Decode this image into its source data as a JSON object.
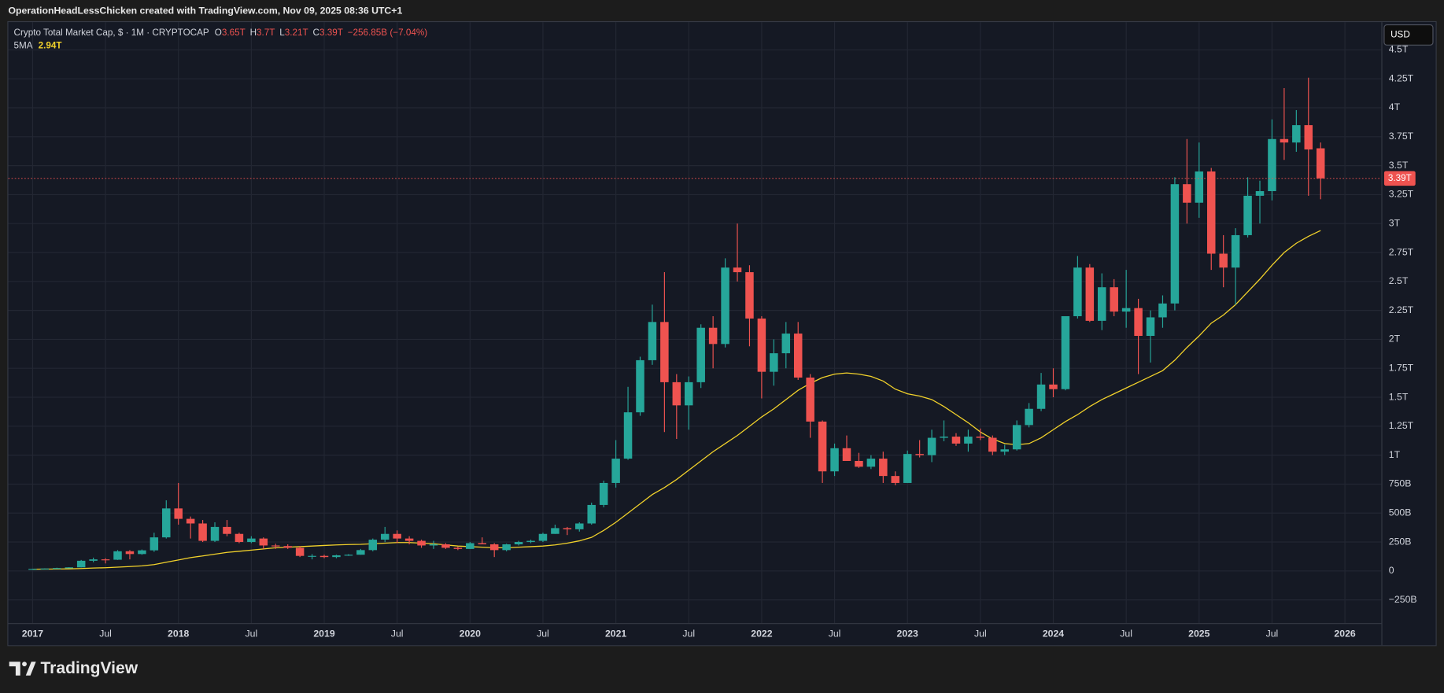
{
  "header": {
    "credit": "OperationHeadLessChicken created with TradingView.com, Nov 09, 2025 08:36 UTC+1"
  },
  "footer": {
    "brand": "TradingView"
  },
  "chart_data": {
    "type": "candlestick",
    "currency": "USD",
    "legend": {
      "symbol": "Crypto Total Market Cap, $ · 1M · CRYPTOCAP",
      "open_label": "O",
      "open": "3.65T",
      "high_label": "H",
      "high": "3.7T",
      "low_label": "L",
      "low": "3.21T",
      "close_label": "C",
      "close": "3.39T",
      "change": "−256.85B (−7.04%)"
    },
    "last_price_label": "3.39T",
    "up_color": "#26a69a",
    "down_color": "#ef5350",
    "x": [
      "2017-01",
      "2017-02",
      "2017-03",
      "2017-04",
      "2017-05",
      "2017-06",
      "2017-07",
      "2017-08",
      "2017-09",
      "2017-10",
      "2017-11",
      "2017-12",
      "2018-01",
      "2018-02",
      "2018-03",
      "2018-04",
      "2018-05",
      "2018-06",
      "2018-07",
      "2018-08",
      "2018-09",
      "2018-10",
      "2018-11",
      "2018-12",
      "2019-01",
      "2019-02",
      "2019-03",
      "2019-04",
      "2019-05",
      "2019-06",
      "2019-07",
      "2019-08",
      "2019-09",
      "2019-10",
      "2019-11",
      "2019-12",
      "2020-01",
      "2020-02",
      "2020-03",
      "2020-04",
      "2020-05",
      "2020-06",
      "2020-07",
      "2020-08",
      "2020-09",
      "2020-10",
      "2020-11",
      "2020-12",
      "2021-01",
      "2021-02",
      "2021-03",
      "2021-04",
      "2021-05",
      "2021-06",
      "2021-07",
      "2021-08",
      "2021-09",
      "2021-10",
      "2021-11",
      "2021-12",
      "2022-01",
      "2022-02",
      "2022-03",
      "2022-04",
      "2022-05",
      "2022-06",
      "2022-07",
      "2022-08",
      "2022-09",
      "2022-10",
      "2022-11",
      "2022-12",
      "2023-01",
      "2023-02",
      "2023-03",
      "2023-04",
      "2023-05",
      "2023-06",
      "2023-07",
      "2023-08",
      "2023-09",
      "2023-10",
      "2023-11",
      "2023-12",
      "2024-01",
      "2024-02",
      "2024-03",
      "2024-04",
      "2024-05",
      "2024-06",
      "2024-07",
      "2024-08",
      "2024-09",
      "2024-10",
      "2024-11",
      "2024-12",
      "2025-01",
      "2025-02",
      "2025-03",
      "2025-04",
      "2025-05",
      "2025-06",
      "2025-07",
      "2025-08",
      "2025-09",
      "2025-10",
      "2025-11"
    ],
    "open": [
      0.018,
      0.018,
      0.021,
      0.025,
      0.031,
      0.088,
      0.1,
      0.097,
      0.17,
      0.146,
      0.178,
      0.29,
      0.54,
      0.45,
      0.41,
      0.26,
      0.38,
      0.32,
      0.25,
      0.28,
      0.22,
      0.215,
      0.2,
      0.13,
      0.13,
      0.12,
      0.135,
      0.14,
      0.18,
      0.27,
      0.32,
      0.28,
      0.26,
      0.22,
      0.23,
      0.2,
      0.19,
      0.24,
      0.23,
      0.18,
      0.23,
      0.25,
      0.26,
      0.32,
      0.37,
      0.36,
      0.41,
      0.57,
      0.76,
      0.97,
      1.37,
      1.82,
      2.15,
      1.63,
      1.43,
      1.63,
      2.1,
      1.96,
      2.62,
      2.58,
      2.18,
      1.72,
      1.88,
      2.05,
      1.67,
      1.29,
      0.86,
      1.06,
      0.95,
      0.9,
      0.97,
      0.82,
      0.76,
      1.01,
      1.0,
      1.15,
      1.16,
      1.1,
      1.16,
      1.15,
      1.03,
      1.05,
      1.26,
      1.4,
      1.61,
      1.57,
      2.2,
      2.62,
      2.16,
      2.45,
      2.24,
      2.27,
      2.03,
      2.19,
      2.31,
      3.34,
      3.18,
      3.45,
      2.74,
      2.62,
      2.9,
      3.24,
      3.28,
      3.73,
      3.7,
      3.85,
      3.65
    ],
    "high": [
      0.019,
      0.022,
      0.028,
      0.032,
      0.095,
      0.115,
      0.11,
      0.18,
      0.18,
      0.185,
      0.33,
      0.61,
      0.76,
      0.47,
      0.44,
      0.42,
      0.44,
      0.33,
      0.3,
      0.29,
      0.235,
      0.23,
      0.215,
      0.145,
      0.14,
      0.14,
      0.145,
      0.19,
      0.28,
      0.38,
      0.35,
      0.3,
      0.27,
      0.26,
      0.24,
      0.21,
      0.25,
      0.29,
      0.24,
      0.235,
      0.26,
      0.27,
      0.33,
      0.4,
      0.38,
      0.42,
      0.59,
      0.78,
      1.13,
      1.59,
      1.85,
      2.3,
      2.58,
      1.7,
      1.68,
      2.13,
      2.2,
      2.7,
      3.0,
      2.64,
      2.2,
      2.0,
      2.15,
      2.15,
      1.7,
      1.3,
      1.1,
      1.17,
      1.02,
      1.0,
      1.03,
      0.86,
      1.04,
      1.13,
      1.22,
      1.3,
      1.19,
      1.22,
      1.23,
      1.17,
      1.09,
      1.3,
      1.45,
      1.71,
      1.75,
      2.2,
      2.72,
      2.65,
      2.57,
      2.52,
      2.6,
      2.35,
      2.25,
      2.38,
      3.4,
      3.73,
      3.7,
      3.48,
      2.9,
      2.96,
      3.4,
      3.37,
      3.9,
      4.17,
      3.98,
      4.26,
      3.7
    ],
    "low": [
      0.016,
      0.018,
      0.02,
      0.024,
      0.03,
      0.075,
      0.065,
      0.095,
      0.1,
      0.14,
      0.165,
      0.28,
      0.4,
      0.28,
      0.25,
      0.25,
      0.3,
      0.24,
      0.24,
      0.19,
      0.19,
      0.19,
      0.12,
      0.1,
      0.11,
      0.11,
      0.13,
      0.14,
      0.17,
      0.25,
      0.24,
      0.23,
      0.2,
      0.19,
      0.19,
      0.18,
      0.19,
      0.23,
      0.12,
      0.17,
      0.22,
      0.24,
      0.25,
      0.32,
      0.31,
      0.34,
      0.4,
      0.55,
      0.72,
      0.96,
      1.34,
      1.78,
      1.2,
      1.14,
      1.22,
      1.58,
      1.75,
      1.93,
      2.5,
      1.94,
      1.49,
      1.6,
      1.75,
      1.65,
      1.15,
      0.76,
      0.82,
      0.95,
      0.89,
      0.88,
      0.76,
      0.74,
      0.76,
      0.98,
      0.94,
      1.12,
      1.08,
      1.03,
      1.13,
      1.0,
      1.0,
      1.04,
      1.24,
      1.38,
      1.5,
      1.56,
      2.18,
      2.15,
      2.08,
      2.2,
      2.1,
      1.7,
      1.8,
      2.1,
      2.25,
      3.0,
      3.05,
      2.6,
      2.45,
      2.3,
      2.88,
      3.0,
      3.2,
      3.55,
      3.62,
      3.24,
      3.21
    ],
    "close": [
      0.018,
      0.021,
      0.025,
      0.031,
      0.088,
      0.1,
      0.097,
      0.17,
      0.146,
      0.178,
      0.29,
      0.54,
      0.45,
      0.41,
      0.26,
      0.38,
      0.32,
      0.25,
      0.28,
      0.22,
      0.215,
      0.2,
      0.13,
      0.13,
      0.12,
      0.135,
      0.14,
      0.18,
      0.27,
      0.32,
      0.28,
      0.26,
      0.22,
      0.23,
      0.2,
      0.19,
      0.24,
      0.23,
      0.18,
      0.23,
      0.25,
      0.26,
      0.32,
      0.37,
      0.36,
      0.41,
      0.57,
      0.76,
      0.97,
      1.37,
      1.82,
      2.15,
      1.63,
      1.43,
      1.63,
      2.1,
      1.96,
      2.62,
      2.58,
      2.18,
      1.72,
      1.88,
      2.05,
      1.67,
      1.29,
      0.86,
      1.06,
      0.95,
      0.9,
      0.97,
      0.82,
      0.76,
      1.01,
      1.0,
      1.15,
      1.16,
      1.1,
      1.16,
      1.15,
      1.03,
      1.05,
      1.26,
      1.4,
      1.61,
      1.57,
      2.2,
      2.62,
      2.16,
      2.45,
      2.24,
      2.27,
      2.03,
      2.19,
      2.31,
      3.34,
      3.18,
      3.45,
      2.74,
      2.62,
      2.9,
      3.24,
      3.28,
      3.73,
      3.7,
      3.85,
      3.64,
      3.39
    ],
    "ma": {
      "name": "5MA",
      "color": "#f2d22b",
      "last_label": "2.94T",
      "values": [
        0.015,
        0.016,
        0.017,
        0.018,
        0.021,
        0.025,
        0.028,
        0.033,
        0.038,
        0.044,
        0.055,
        0.075,
        0.095,
        0.115,
        0.13,
        0.145,
        0.16,
        0.17,
        0.18,
        0.19,
        0.2,
        0.205,
        0.21,
        0.215,
        0.22,
        0.225,
        0.228,
        0.23,
        0.235,
        0.24,
        0.245,
        0.245,
        0.24,
        0.235,
        0.225,
        0.215,
        0.21,
        0.205,
        0.2,
        0.2,
        0.205,
        0.21,
        0.215,
        0.225,
        0.24,
        0.26,
        0.29,
        0.35,
        0.42,
        0.5,
        0.58,
        0.66,
        0.72,
        0.79,
        0.87,
        0.95,
        1.03,
        1.1,
        1.17,
        1.25,
        1.33,
        1.4,
        1.48,
        1.56,
        1.62,
        1.67,
        1.7,
        1.71,
        1.7,
        1.68,
        1.64,
        1.57,
        1.53,
        1.51,
        1.48,
        1.42,
        1.35,
        1.28,
        1.2,
        1.14,
        1.1,
        1.09,
        1.1,
        1.15,
        1.22,
        1.29,
        1.35,
        1.42,
        1.48,
        1.53,
        1.58,
        1.63,
        1.68,
        1.73,
        1.82,
        1.93,
        2.03,
        2.14,
        2.21,
        2.3,
        2.41,
        2.52,
        2.64,
        2.75,
        2.83,
        2.89,
        2.94
      ]
    },
    "xlim": [
      "2016-11",
      "2026-04"
    ],
    "xticks": [
      {
        "value": "2017-01",
        "label": "2017"
      },
      {
        "value": "2017-07",
        "label": "Jul"
      },
      {
        "value": "2018-01",
        "label": "2018"
      },
      {
        "value": "2018-07",
        "label": "Jul"
      },
      {
        "value": "2019-01",
        "label": "2019"
      },
      {
        "value": "2019-07",
        "label": "Jul"
      },
      {
        "value": "2020-01",
        "label": "2020"
      },
      {
        "value": "2020-07",
        "label": "Jul"
      },
      {
        "value": "2021-01",
        "label": "2021"
      },
      {
        "value": "2021-07",
        "label": "Jul"
      },
      {
        "value": "2022-01",
        "label": "2022"
      },
      {
        "value": "2022-07",
        "label": "Jul"
      },
      {
        "value": "2023-01",
        "label": "2023"
      },
      {
        "value": "2023-07",
        "label": "Jul"
      },
      {
        "value": "2024-01",
        "label": "2024"
      },
      {
        "value": "2024-07",
        "label": "Jul"
      },
      {
        "value": "2025-01",
        "label": "2025"
      },
      {
        "value": "2025-07",
        "label": "Jul"
      },
      {
        "value": "2026-01",
        "label": "2026"
      }
    ],
    "ylim": [
      -0.45,
      4.74
    ],
    "yticks": [
      {
        "value": -0.25,
        "label": "−250B"
      },
      0,
      {
        "value": 0.25,
        "label": "250B"
      },
      {
        "value": 0.5,
        "label": "500B"
      },
      {
        "value": 0.75,
        "label": "750B"
      },
      {
        "value": 1,
        "label": "1T"
      },
      {
        "value": 1.25,
        "label": "1.25T"
      },
      {
        "value": 1.5,
        "label": "1.5T"
      },
      {
        "value": 1.75,
        "label": "1.75T"
      },
      {
        "value": 2,
        "label": "2T"
      },
      {
        "value": 2.25,
        "label": "2.25T"
      },
      {
        "value": 2.5,
        "label": "2.5T"
      },
      {
        "value": 2.75,
        "label": "2.75T"
      },
      {
        "value": 3,
        "label": "3T"
      },
      {
        "value": 3.25,
        "label": "3.25T"
      },
      {
        "value": 3.5,
        "label": "3.5T"
      },
      {
        "value": 3.75,
        "label": "3.75T"
      },
      {
        "value": 4,
        "label": "4T"
      },
      {
        "value": 4.25,
        "label": "4.25T"
      },
      {
        "value": 4.5,
        "label": "4.5T"
      }
    ],
    "grid": true
  }
}
